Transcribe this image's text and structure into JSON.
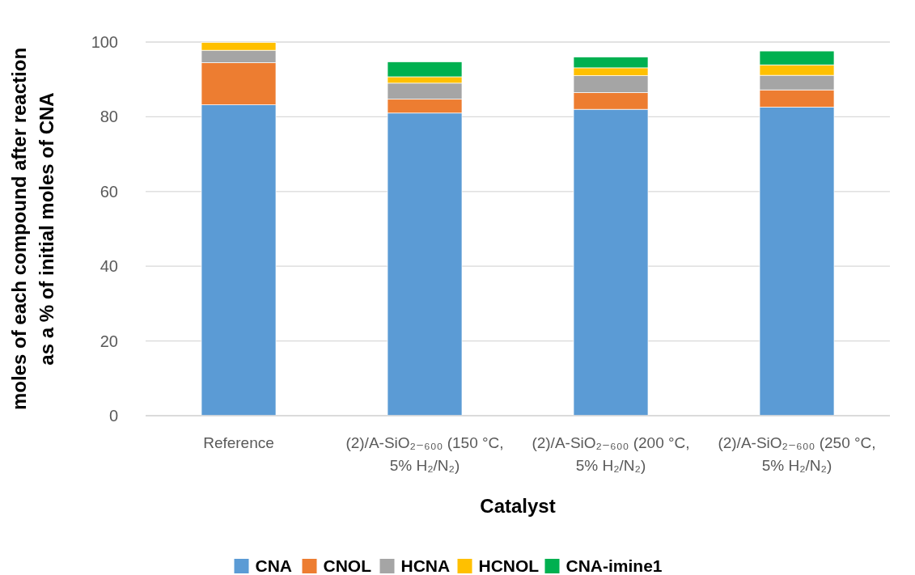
{
  "chart_data": {
    "type": "bar",
    "stacked": true,
    "xlabel": "Catalyst",
    "ylabel": "moles of each compound after reaction as a % of initial moles of CNA",
    "categories": [
      "Reference",
      "(2)/A-SiO₂₋₆₀₀ (150 °C, 5% H₂/N₂)",
      "(2)/A-SiO₂₋₆₀₀ (200 °C, 5% H₂/N₂)",
      "(2)/A-SiO₂₋₆₀₀ (250 °C, 5% H₂/N₂)"
    ],
    "series": [
      {
        "name": "CNA",
        "color": "#5b9bd5",
        "values": [
          83.2,
          81.0,
          82.0,
          82.6
        ]
      },
      {
        "name": "CNOL",
        "color": "#ed7d31",
        "values": [
          11.3,
          3.7,
          4.5,
          4.6
        ]
      },
      {
        "name": "HCNA",
        "color": "#a5a5a5",
        "values": [
          3.3,
          4.3,
          4.5,
          3.9
        ]
      },
      {
        "name": "HCNOL",
        "color": "#ffc000",
        "values": [
          2.1,
          1.7,
          2.1,
          2.8
        ]
      },
      {
        "name": "CNA-imine1",
        "color": "#00b050",
        "values": [
          0,
          4.0,
          2.9,
          3.7
        ]
      }
    ],
    "ylim": [
      0,
      100
    ],
    "yticks": [
      0,
      20,
      40,
      60,
      80,
      100
    ],
    "grid": "y",
    "legend": "bottom"
  }
}
